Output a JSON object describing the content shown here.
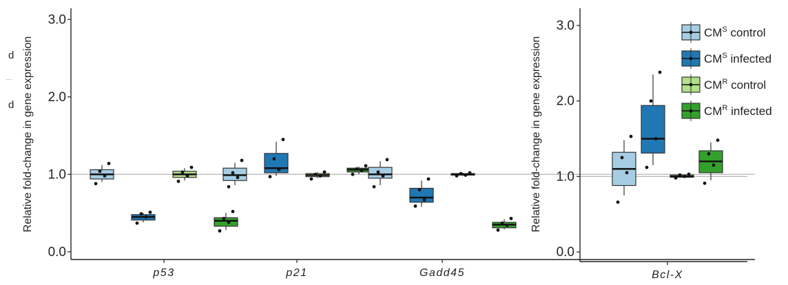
{
  "stray_text": [
    "d",
    "d"
  ],
  "chart_data": [
    {
      "type": "box",
      "title": "",
      "xlabel": "",
      "ylabel": "Relative fold-change in gene expression",
      "ylim": [
        -0.1,
        3.1
      ],
      "yticks": [
        0.0,
        1.0,
        2.0,
        3.0
      ],
      "ytick_labels": [
        "0.0",
        "1.0",
        "2.0",
        "3.0"
      ],
      "reference_line": 1.0,
      "grid": false,
      "categories": [
        "p53",
        "p21",
        "Gadd45"
      ],
      "series": [
        {
          "legend_key": "CMS_control",
          "color": "#a6cde3",
          "boxes": [
            {
              "min": 0.9,
              "q1": 0.94,
              "median": 1.0,
              "q3": 1.06,
              "max": 1.12,
              "points": [
                0.88,
                0.98,
                1.04,
                1.14
              ]
            },
            {
              "min": 0.86,
              "q1": 0.92,
              "median": 0.99,
              "q3": 1.08,
              "max": 1.15,
              "points": [
                0.84,
                0.96,
                1.02,
                1.18
              ]
            },
            {
              "min": 0.86,
              "q1": 0.95,
              "median": 1.0,
              "q3": 1.09,
              "max": 1.17,
              "points": [
                0.84,
                0.98,
                1.03,
                1.19
              ]
            }
          ]
        },
        {
          "legend_key": "CMS_infected",
          "color": "#1f78b4",
          "boxes": [
            {
              "min": 0.38,
              "q1": 0.41,
              "median": 0.45,
              "q3": 0.48,
              "max": 0.5,
              "points": [
                0.37,
                0.45,
                0.49,
                0.51
              ]
            },
            {
              "min": 0.98,
              "q1": 1.02,
              "median": 1.08,
              "q3": 1.27,
              "max": 1.42,
              "points": [
                0.97,
                1.06,
                1.2,
                1.45
              ]
            },
            {
              "min": 0.58,
              "q1": 0.64,
              "median": 0.7,
              "q3": 0.82,
              "max": 0.92,
              "points": [
                0.59,
                0.67,
                0.8,
                0.94
              ]
            }
          ]
        },
        {
          "legend_key": "CMR_control",
          "color": "#b2df8a",
          "boxes": [
            {
              "min": 0.92,
              "q1": 0.96,
              "median": 1.0,
              "q3": 1.04,
              "max": 1.08,
              "points": [
                0.91,
                0.98,
                1.03,
                1.09
              ]
            },
            {
              "min": 0.95,
              "q1": 0.97,
              "median": 0.99,
              "q3": 1.01,
              "max": 1.03,
              "points": [
                0.94,
                0.98,
                1.0,
                1.03
              ]
            },
            {
              "min": 0.98,
              "q1": 0.99,
              "median": 1.0,
              "q3": 1.01,
              "max": 1.02,
              "points": [
                0.98,
                0.99,
                1.01,
                1.02
              ]
            }
          ]
        },
        {
          "legend_key": "CMR_infected",
          "color": "#33a02c",
          "boxes": [
            {
              "min": 0.28,
              "q1": 0.33,
              "median": 0.4,
              "q3": 0.44,
              "max": 0.5,
              "points": [
                0.27,
                0.38,
                0.43,
                0.52
              ]
            },
            {
              "min": 1.0,
              "q1": 1.03,
              "median": 1.06,
              "q3": 1.08,
              "max": 1.1,
              "points": [
                1.0,
                1.05,
                1.07,
                1.11
              ]
            },
            {
              "min": 0.29,
              "q1": 0.31,
              "median": 0.35,
              "q3": 0.38,
              "max": 0.42,
              "points": [
                0.28,
                0.34,
                0.37,
                0.43
              ]
            }
          ]
        }
      ]
    },
    {
      "type": "box",
      "title": "",
      "xlabel": "",
      "ylabel": "Relative fold-change in gene expression",
      "ylim": [
        -0.1,
        3.1
      ],
      "yticks": [
        0.0,
        1.0,
        2.0,
        3.0
      ],
      "ytick_labels": [
        "0.0",
        "1.0",
        "2.0",
        "3.0"
      ],
      "reference_line": 1.0,
      "grid": false,
      "categories": [
        "Bcl-X"
      ],
      "legend_position": "top-right",
      "legend": [
        {
          "key": "CMS_control",
          "base": "CM",
          "sup": "S",
          "rest": " control",
          "color": "#a6cde3"
        },
        {
          "key": "CMS_infected",
          "base": "CM",
          "sup": "S",
          "rest": " infected",
          "color": "#1f78b4"
        },
        {
          "key": "CMR_control",
          "base": "CM",
          "sup": "R",
          "rest": " control",
          "color": "#b2df8a"
        },
        {
          "key": "CMR_infected",
          "base": "CM",
          "sup": "R",
          "rest": " infected",
          "color": "#33a02c"
        }
      ],
      "series": [
        {
          "legend_key": "CMS_control",
          "color": "#a6cde3",
          "boxes": [
            {
              "min": 0.75,
              "q1": 0.88,
              "median": 1.1,
              "q3": 1.32,
              "max": 1.48,
              "points": [
                0.66,
                1.05,
                1.25,
                1.53
              ]
            }
          ]
        },
        {
          "legend_key": "CMS_infected",
          "color": "#1f78b4",
          "boxes": [
            {
              "min": 1.15,
              "q1": 1.31,
              "median": 1.5,
              "q3": 1.94,
              "max": 2.35,
              "points": [
                1.12,
                1.5,
                2.0,
                2.38
              ]
            }
          ]
        },
        {
          "legend_key": "CMR_control",
          "color": "#b2df8a",
          "boxes": [
            {
              "min": 0.99,
              "q1": 0.99,
              "median": 1.0,
              "q3": 1.02,
              "max": 1.03,
              "points": [
                0.98,
                1.0,
                1.02,
                1.03
              ]
            }
          ]
        },
        {
          "legend_key": "CMR_infected",
          "color": "#33a02c",
          "boxes": [
            {
              "min": 0.95,
              "q1": 1.05,
              "median": 1.2,
              "q3": 1.34,
              "max": 1.45,
              "points": [
                0.91,
                1.15,
                1.3,
                1.48
              ]
            }
          ]
        }
      ]
    }
  ]
}
